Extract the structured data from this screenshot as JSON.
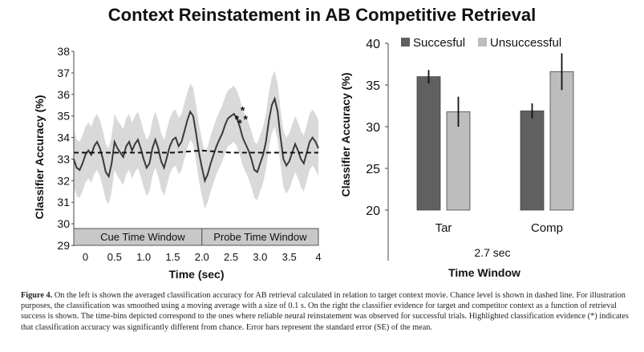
{
  "figure_title": "Context Reinstatement in AB Competitive Retrieval",
  "caption": {
    "label": "Figure 4.",
    "text": "On the left is shown the averaged classification accuracy for AB retrieval calculated in relation to target context movie. Chance level is shown in dashed line. For illustration purposes, the classification was smoothed using a moving average with a size of 0.1 s. On the right the classifier evidence for target and competitor context as a function of retrieval success is shown. The time-bins depicted correspond to the ones where reliable neural reinstatement was observed for successful trials. Highlighted classification evidence (*) indicates that classification accuracy was significantly different from chance. Error bars represent the standard error (SE) of the mean."
  },
  "colors": {
    "line": "#3a3a3a",
    "band": "#d9d9d9",
    "successful": "#606060",
    "unsuccessful": "#bdbdbd",
    "window_bar": "#c8c8c8"
  },
  "chart_data": [
    {
      "type": "line",
      "xlabel": "Time (sec)",
      "ylabel": "Classifier Accuracy (%)",
      "xlim": [
        -0.2,
        4.0
      ],
      "ylim": [
        29,
        38
      ],
      "xticks": [
        "0",
        "0.5",
        "1.0",
        "1.5",
        "2.0",
        "2.5",
        "3.0",
        "3.5",
        "4"
      ],
      "yticks": [
        "29",
        "30",
        "31",
        "32",
        "33",
        "34",
        "35",
        "36",
        "37",
        "38"
      ],
      "windows": [
        {
          "label": "Cue Time Window",
          "start": -0.2,
          "end": 2.0
        },
        {
          "label": "Probe Time Window",
          "start": 2.0,
          "end": 4.0
        }
      ],
      "series": [
        {
          "x": [
            -0.2,
            -0.15,
            -0.1,
            -0.05,
            0,
            0.05,
            0.1,
            0.15,
            0.2,
            0.25,
            0.3,
            0.35,
            0.4,
            0.45,
            0.5,
            0.55,
            0.6,
            0.65,
            0.7,
            0.75,
            0.8,
            0.85,
            0.9,
            0.95,
            1.0,
            1.05,
            1.1,
            1.15,
            1.2,
            1.25,
            1.3,
            1.35,
            1.4,
            1.45,
            1.5,
            1.55,
            1.6,
            1.65,
            1.7,
            1.75,
            1.8,
            1.85,
            1.9,
            1.95,
            2.0,
            2.05,
            2.1,
            2.15,
            2.2,
            2.25,
            2.3,
            2.35,
            2.4,
            2.45,
            2.5,
            2.55,
            2.6,
            2.65,
            2.7,
            2.75,
            2.8,
            2.85,
            2.9,
            2.95,
            3.0,
            3.05,
            3.1,
            3.15,
            3.2,
            3.25,
            3.3,
            3.35,
            3.4,
            3.45,
            3.5,
            3.55,
            3.6,
            3.65,
            3.7,
            3.75,
            3.8,
            3.85,
            3.9,
            3.95,
            4.0
          ],
          "y": [
            33.0,
            32.6,
            32.5,
            32.8,
            33.2,
            33.4,
            33.2,
            33.6,
            33.8,
            33.5,
            33.0,
            32.4,
            32.2,
            32.8,
            33.8,
            33.5,
            33.3,
            33.1,
            33.6,
            33.8,
            33.4,
            33.7,
            33.9,
            33.5,
            33.0,
            32.6,
            32.8,
            33.5,
            33.9,
            33.5,
            32.9,
            32.6,
            33.1,
            33.6,
            33.9,
            34.0,
            33.6,
            33.8,
            34.3,
            34.8,
            35.2,
            35.0,
            34.2,
            33.3,
            32.6,
            32.0,
            32.3,
            32.8,
            33.2,
            33.6,
            33.9,
            34.2,
            34.6,
            34.9,
            35.0,
            35.1,
            34.9,
            34.5,
            34.0,
            33.7,
            33.4,
            33.0,
            32.5,
            32.4,
            32.8,
            33.2,
            33.8,
            34.8,
            35.5,
            35.8,
            35.2,
            34.0,
            33.0,
            32.7,
            32.9,
            33.3,
            33.7,
            33.4,
            33.0,
            32.8,
            33.3,
            33.8,
            34.0,
            33.8,
            33.5
          ],
          "sem": 1.3
        },
        {
          "name": "Chance level",
          "x": [
            -0.2,
            0.5,
            1.0,
            1.5,
            2.0,
            2.5,
            3.0,
            3.5,
            4.0
          ],
          "y": [
            33.3,
            33.3,
            33.3,
            33.3,
            33.4,
            33.3,
            33.3,
            33.3,
            33.3
          ],
          "style": "dashed"
        }
      ],
      "significant_markers": [
        {
          "x": 2.6,
          "y": 34.9,
          "label": "*"
        },
        {
          "x": 2.65,
          "y": 34.7,
          "label": "*"
        },
        {
          "x": 2.7,
          "y": 35.3,
          "label": "*"
        },
        {
          "x": 2.75,
          "y": 34.9,
          "label": "*"
        }
      ]
    },
    {
      "type": "bar",
      "title": "",
      "xlabel": "Time Window",
      "x_sublabel": "2.7 sec",
      "ylabel": "Classifier Accuracy (%)",
      "ylim": [
        20,
        40
      ],
      "yticks": [
        "20",
        "25",
        "30",
        "35",
        "40"
      ],
      "categories": [
        "Tar",
        "Comp"
      ],
      "legend_position": "top",
      "series": [
        {
          "name": "Succesful",
          "values": [
            36.0,
            31.9
          ],
          "error": [
            0.8,
            0.9
          ]
        },
        {
          "name": "Unsuccessful",
          "values": [
            31.8,
            36.6
          ],
          "error": [
            1.8,
            2.2
          ]
        }
      ]
    }
  ]
}
